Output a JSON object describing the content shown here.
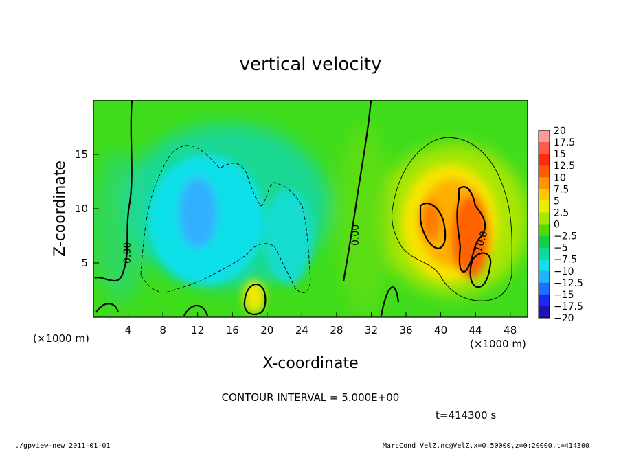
{
  "chart_data": {
    "type": "heatmap",
    "title": "vertical velocity",
    "xlabel": "X-coordinate",
    "ylabel": "Z-coordinate",
    "x_unit": "(×1000 m)",
    "z_unit": "(×1000 m)",
    "xlim": [
      0,
      50
    ],
    "ylim": [
      0,
      20
    ],
    "x_ticks": [
      4,
      8,
      12,
      16,
      20,
      24,
      28,
      32,
      36,
      40,
      44,
      48
    ],
    "y_ticks": [
      5,
      10,
      15
    ],
    "colorbar": {
      "labels": [
        "20",
        "17.5",
        "15",
        "12.5",
        "10",
        "7.5",
        "5",
        "2.5",
        "0",
        "−2.5",
        "−5",
        "−7.5",
        "−10",
        "−12.5",
        "−15",
        "−17.5",
        "−20"
      ],
      "colors": [
        "#ff9a9a",
        "#ff5a4a",
        "#ff2a10",
        "#ff5a00",
        "#ff9600",
        "#ffc800",
        "#e8f000",
        "#a8e800",
        "#50dc00",
        "#10d240",
        "#10d8a0",
        "#10e0e8",
        "#20b4ff",
        "#1e6eff",
        "#1a28f0",
        "#2010b8",
        "#7a10c8"
      ]
    },
    "contour_labels": [
      "0.00",
      "0.00",
      "10.0"
    ],
    "contour_interval_text": "CONTOUR INTERVAL = 5.000E+00",
    "time_text": "t=414300 s",
    "features": [
      {
        "type": "downdraft",
        "x": 11.5,
        "z": 9.5,
        "value": -8
      },
      {
        "type": "updraft",
        "x": 42.5,
        "z": 7.5,
        "value": 13
      },
      {
        "type": "updraft",
        "x": 38.5,
        "z": 9.5,
        "value": 10
      }
    ]
  },
  "footer": {
    "left": "./gpview-new   2011-01-01",
    "right": "MarsCond_VelZ.nc@VelZ,x=0:50000,z=0:20000,t=414300"
  }
}
